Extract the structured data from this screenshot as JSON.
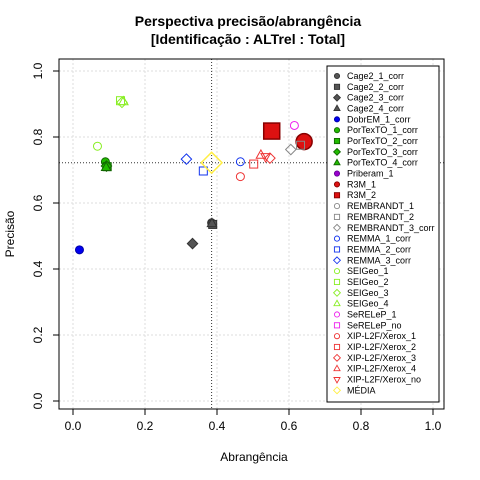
{
  "chart_data": {
    "type": "scatter",
    "title": "Perspectiva precisão/abrangência",
    "subtitle": "[Identificação : ALTrel : Total]",
    "xlabel": "Abrangência",
    "ylabel": "Precisão",
    "xlim": [
      0,
      1
    ],
    "ylim": [
      0,
      1
    ],
    "xticks": [
      "0.0",
      "0.2",
      "0.4",
      "0.6",
      "0.8",
      "1.0"
    ],
    "yticks": [
      "0.0",
      "0.2",
      "0.4",
      "0.6",
      "0.8",
      "1.0"
    ],
    "grid": true,
    "legend_position": "top-right",
    "reference_lines": {
      "x": 0.385,
      "y": 0.722
    },
    "series": [
      {
        "name": "Cage2_1_corr",
        "marker": "circle",
        "fill": "#555555",
        "stroke": "#333333",
        "x": [
          0.385
        ],
        "y": [
          0.54
        ]
      },
      {
        "name": "Cage2_2_corr",
        "marker": "square",
        "fill": "#555555",
        "stroke": "#333333",
        "x": [
          0.388
        ],
        "y": [
          0.535
        ]
      },
      {
        "name": "Cage2_3_corr",
        "marker": "diamond",
        "fill": "#555555",
        "stroke": "#333333",
        "x": [
          0.332
        ],
        "y": [
          0.477
        ]
      },
      {
        "name": "Cage2_4_corr",
        "marker": "triangle",
        "fill": "#555555",
        "stroke": "#333333",
        "x": [
          0.386
        ],
        "y": [
          0.538
        ]
      },
      {
        "name": "DobrEM_1_corr",
        "marker": "circle",
        "fill": "#0000ee",
        "stroke": "#0000aa",
        "x": [
          0.018
        ],
        "y": [
          0.458
        ]
      },
      {
        "name": "PorTexTO_1_corr",
        "marker": "circle",
        "fill": "#22bb00",
        "stroke": "#116600",
        "x": [
          0.09
        ],
        "y": [
          0.725
        ]
      },
      {
        "name": "PorTexTO_2_corr",
        "marker": "square",
        "fill": "#22bb00",
        "stroke": "#116600",
        "x": [
          0.095
        ],
        "y": [
          0.71
        ]
      },
      {
        "name": "PorTexTO_3_corr",
        "marker": "diamond",
        "fill": "#22bb00",
        "stroke": "#116600",
        "x": [
          0.093
        ],
        "y": [
          0.712
        ]
      },
      {
        "name": "PorTexTO_4_corr",
        "marker": "triangle",
        "fill": "#22bb00",
        "stroke": "#116600",
        "x": [
          0.092
        ],
        "y": [
          0.708
        ]
      },
      {
        "name": "Priberam_1",
        "marker": "circle",
        "fill": "#9900cc",
        "stroke": "#660099",
        "x": [],
        "y": []
      },
      {
        "name": "R3M_1",
        "marker": "circle",
        "fill": "#dd1111",
        "stroke": "#880000",
        "x": [
          0.642
        ],
        "y": [
          0.786
        ]
      },
      {
        "name": "R3M_2",
        "marker": "square",
        "fill": "#dd1111",
        "stroke": "#880000",
        "x": [
          0.552
        ],
        "y": [
          0.818
        ]
      },
      {
        "name": "REMBRANDT_1",
        "marker": "circle",
        "fill": "none",
        "stroke": "#888888",
        "x": [],
        "y": []
      },
      {
        "name": "REMBRANDT_2",
        "marker": "square",
        "fill": "none",
        "stroke": "#888888",
        "x": [
          0.632
        ],
        "y": [
          0.775
        ]
      },
      {
        "name": "REMBRANDT_3_corr",
        "marker": "diamond",
        "fill": "none",
        "stroke": "#888888",
        "x": [
          0.605
        ],
        "y": [
          0.762
        ]
      },
      {
        "name": "REMMA_1_corr",
        "marker": "circle",
        "fill": "none",
        "stroke": "#1133ee",
        "x": [
          0.465
        ],
        "y": [
          0.725
        ]
      },
      {
        "name": "REMMA_2_corr",
        "marker": "square",
        "fill": "none",
        "stroke": "#1133ee",
        "x": [
          0.362
        ],
        "y": [
          0.697
        ]
      },
      {
        "name": "REMMA_3_corr",
        "marker": "diamond",
        "fill": "none",
        "stroke": "#1133ee",
        "x": [
          0.315
        ],
        "y": [
          0.733
        ]
      },
      {
        "name": "SEIGeo_1",
        "marker": "circle",
        "fill": "none",
        "stroke": "#88ee22",
        "x": [
          0.068
        ],
        "y": [
          0.772
        ]
      },
      {
        "name": "SEIGeo_2",
        "marker": "square",
        "fill": "none",
        "stroke": "#88ee22",
        "x": [
          0.132
        ],
        "y": [
          0.91
        ]
      },
      {
        "name": "SEIGeo_3",
        "marker": "diamond",
        "fill": "none",
        "stroke": "#88ee22",
        "x": [
          0.136
        ],
        "y": [
          0.905
        ]
      },
      {
        "name": "SEIGeo_4",
        "marker": "triangle",
        "fill": "none",
        "stroke": "#88ee22",
        "x": [
          0.14
        ],
        "y": [
          0.907
        ]
      },
      {
        "name": "SeRELeP_1",
        "marker": "circle",
        "fill": "none",
        "stroke": "#ee22ee",
        "x": [
          0.615
        ],
        "y": [
          0.835
        ]
      },
      {
        "name": "SeRELeP_no",
        "marker": "square",
        "fill": "none",
        "stroke": "#ee22ee",
        "x": [],
        "y": []
      },
      {
        "name": "XIP-L2F/Xerox_1",
        "marker": "circle",
        "fill": "none",
        "stroke": "#ee3333",
        "x": [
          0.465
        ],
        "y": [
          0.68
        ]
      },
      {
        "name": "XIP-L2F/Xerox_2",
        "marker": "square",
        "fill": "none",
        "stroke": "#ee3333",
        "x": [
          0.502
        ],
        "y": [
          0.718
        ]
      },
      {
        "name": "XIP-L2F/Xerox_3",
        "marker": "diamond",
        "fill": "none",
        "stroke": "#ee3333",
        "x": [
          0.547
        ],
        "y": [
          0.736
        ]
      },
      {
        "name": "XIP-L2F/Xerox_4",
        "marker": "triangle",
        "fill": "none",
        "stroke": "#ee3333",
        "x": [
          0.522
        ],
        "y": [
          0.745
        ]
      },
      {
        "name": "XIP-L2F/Xerox_no",
        "marker": "triangle-down",
        "fill": "none",
        "stroke": "#ee3333",
        "x": [
          0.535
        ],
        "y": [
          0.74
        ]
      },
      {
        "name": "MÉDIA",
        "marker": "diamond",
        "fill": "none",
        "stroke": "#ffee44",
        "x": [
          0.385
        ],
        "y": [
          0.722
        ]
      }
    ],
    "big_markers": [
      "R3M_1",
      "R3M_2",
      "MÉDIA"
    ]
  }
}
